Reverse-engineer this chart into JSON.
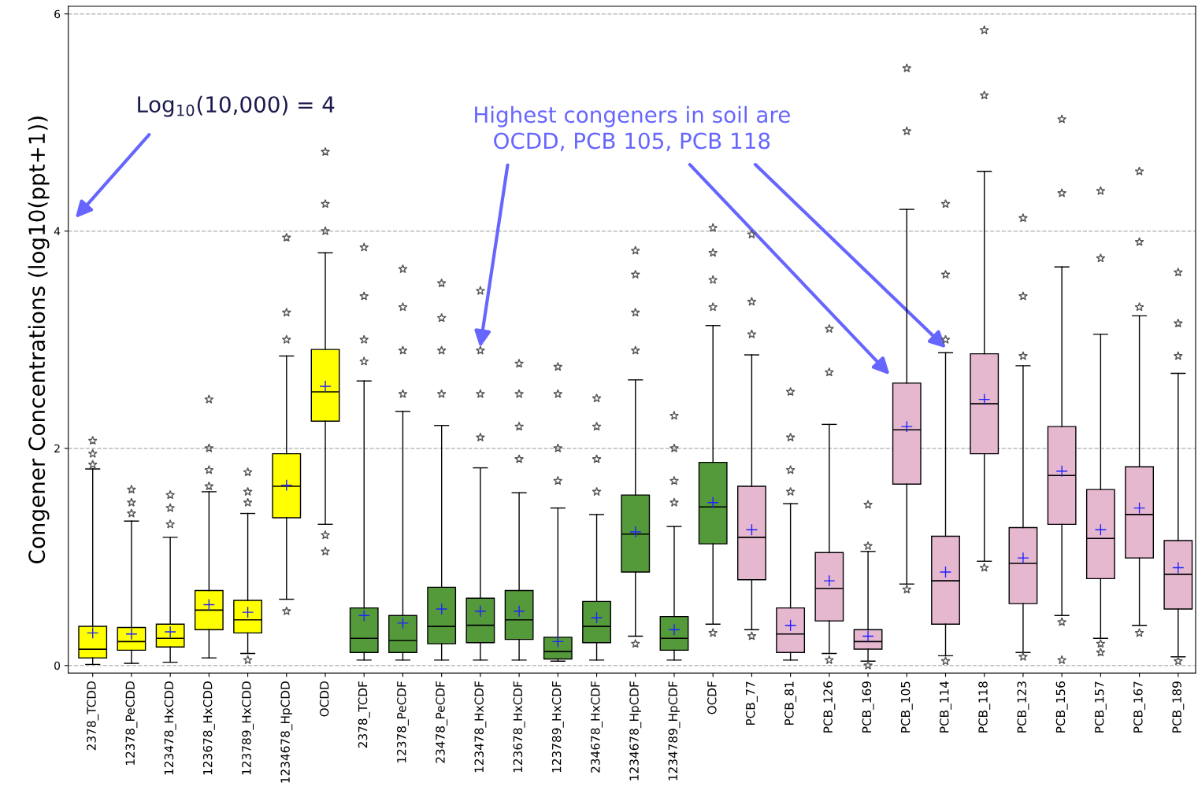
{
  "chart_data": {
    "type": "box",
    "ylabel": "Congener Concentrations (log10(ppt+1))",
    "categories": [
      "2378_TCDD",
      "12378_PeCDD",
      "123478_HxCDD",
      "123678_HxCDD",
      "123789_HxCDD",
      "1234678_HpCDD",
      "OCDD",
      "2378_TCDF",
      "12378_PeCDF",
      "23478_PeCDF",
      "123478_HxCDF",
      "123678_HxCDF",
      "123789_HxCDF",
      "234678_HxCDF",
      "1234678_HpCDF",
      "1234789_HpCDF",
      "OCDF",
      "PCB_77",
      "PCB_81",
      "PCB_126",
      "PCB_169",
      "PCB_105",
      "PCB_114",
      "PCB_118",
      "PCB_123",
      "PCB_156",
      "PCB_157",
      "PCB_167",
      "PCB_189"
    ],
    "colors": [
      "#ffff00",
      "#ffff00",
      "#ffff00",
      "#ffff00",
      "#ffff00",
      "#ffff00",
      "#ffff00",
      "#559a3a",
      "#559a3a",
      "#559a3a",
      "#559a3a",
      "#559a3a",
      "#559a3a",
      "#559a3a",
      "#559a3a",
      "#559a3a",
      "#559a3a",
      "#e6b8d0",
      "#e6b8d0",
      "#e6b8d0",
      "#e6b8d0",
      "#e6b8d0",
      "#e6b8d0",
      "#e6b8d0",
      "#e6b8d0",
      "#e6b8d0",
      "#e6b8d0",
      "#e6b8d0",
      "#e6b8d0"
    ],
    "boxes": [
      {
        "low": 0.01,
        "q1": 0.07,
        "median": 0.15,
        "q3": 0.36,
        "high": 1.81,
        "mean": 0.3,
        "outliers": [
          2.07,
          1.95,
          1.85
        ]
      },
      {
        "low": 0.02,
        "q1": 0.14,
        "median": 0.22,
        "q3": 0.35,
        "high": 1.33,
        "mean": 0.29,
        "outliers": [
          1.62,
          1.5,
          1.4
        ]
      },
      {
        "low": 0.03,
        "q1": 0.17,
        "median": 0.25,
        "q3": 0.38,
        "high": 1.18,
        "mean": 0.31,
        "outliers": [
          1.57,
          1.45,
          1.3
        ]
      },
      {
        "low": 0.07,
        "q1": 0.33,
        "median": 0.51,
        "q3": 0.69,
        "high": 1.6,
        "mean": 0.56,
        "outliers": [
          2.45,
          2.0,
          1.8,
          1.65
        ]
      },
      {
        "low": 0.11,
        "q1": 0.3,
        "median": 0.42,
        "q3": 0.6,
        "high": 1.4,
        "mean": 0.49,
        "outliers": [
          1.78,
          1.6,
          1.5,
          0.05
        ]
      },
      {
        "low": 0.61,
        "q1": 1.36,
        "median": 1.65,
        "q3": 1.95,
        "high": 2.85,
        "mean": 1.66,
        "outliers": [
          3.94,
          3.25,
          3.0,
          0.5
        ]
      },
      {
        "low": 1.3,
        "q1": 2.25,
        "median": 2.52,
        "q3": 2.91,
        "high": 3.8,
        "mean": 2.57,
        "outliers": [
          4.73,
          4.25,
          4.0,
          1.2,
          1.05
        ]
      },
      {
        "low": 0.05,
        "q1": 0.12,
        "median": 0.25,
        "q3": 0.53,
        "high": 2.62,
        "mean": 0.46,
        "outliers": [
          3.85,
          3.4,
          3.0,
          2.8
        ]
      },
      {
        "low": 0.05,
        "q1": 0.12,
        "median": 0.23,
        "q3": 0.46,
        "high": 2.34,
        "mean": 0.39,
        "outliers": [
          3.65,
          3.3,
          2.9,
          2.5
        ]
      },
      {
        "low": 0.05,
        "q1": 0.2,
        "median": 0.36,
        "q3": 0.72,
        "high": 2.21,
        "mean": 0.52,
        "outliers": [
          3.52,
          3.2,
          2.9,
          2.5
        ]
      },
      {
        "low": 0.05,
        "q1": 0.21,
        "median": 0.37,
        "q3": 0.62,
        "high": 1.82,
        "mean": 0.5,
        "outliers": [
          3.45,
          2.9,
          2.5,
          2.1
        ]
      },
      {
        "low": 0.05,
        "q1": 0.24,
        "median": 0.42,
        "q3": 0.69,
        "high": 1.59,
        "mean": 0.5,
        "outliers": [
          2.78,
          2.5,
          2.2,
          1.9
        ]
      },
      {
        "low": 0.04,
        "q1": 0.06,
        "median": 0.13,
        "q3": 0.26,
        "high": 1.45,
        "mean": 0.22,
        "outliers": [
          2.75,
          2.5,
          2.0,
          1.7
        ]
      },
      {
        "low": 0.05,
        "q1": 0.21,
        "median": 0.36,
        "q3": 0.59,
        "high": 1.39,
        "mean": 0.44,
        "outliers": [
          2.46,
          2.2,
          1.9,
          1.6
        ]
      },
      {
        "low": 0.27,
        "q1": 0.86,
        "median": 1.21,
        "q3": 1.57,
        "high": 2.63,
        "mean": 1.23,
        "outliers": [
          3.82,
          3.6,
          3.25,
          2.9,
          0.2
        ]
      },
      {
        "low": 0.05,
        "q1": 0.14,
        "median": 0.25,
        "q3": 0.45,
        "high": 1.28,
        "mean": 0.33,
        "outliers": [
          2.3,
          2.0,
          1.7,
          1.5
        ]
      },
      {
        "low": 0.38,
        "q1": 1.12,
        "median": 1.46,
        "q3": 1.87,
        "high": 3.13,
        "mean": 1.5,
        "outliers": [
          4.03,
          3.8,
          3.55,
          3.3,
          0.3
        ]
      },
      {
        "low": 0.33,
        "q1": 0.79,
        "median": 1.18,
        "q3": 1.65,
        "high": 2.86,
        "mean": 1.25,
        "outliers": [
          3.97,
          3.35,
          3.05,
          0.27
        ]
      },
      {
        "low": 0.05,
        "q1": 0.12,
        "median": 0.29,
        "q3": 0.53,
        "high": 1.49,
        "mean": 0.37,
        "outliers": [
          2.52,
          2.1,
          1.8,
          1.6
        ]
      },
      {
        "low": 0.11,
        "q1": 0.41,
        "median": 0.71,
        "q3": 1.04,
        "high": 2.22,
        "mean": 0.78,
        "outliers": [
          3.1,
          2.7,
          0.05
        ]
      },
      {
        "low": 0.04,
        "q1": 0.15,
        "median": 0.22,
        "q3": 0.33,
        "high": 1.05,
        "mean": 0.27,
        "outliers": [
          1.48,
          1.1,
          0.0
        ]
      },
      {
        "low": 0.75,
        "q1": 1.67,
        "median": 2.17,
        "q3": 2.6,
        "high": 4.2,
        "mean": 2.2,
        "outliers": [
          5.5,
          4.92,
          0.7
        ]
      },
      {
        "low": 0.09,
        "q1": 0.38,
        "median": 0.78,
        "q3": 1.19,
        "high": 2.88,
        "mean": 0.86,
        "outliers": [
          4.25,
          3.6,
          3.0,
          0.04
        ]
      },
      {
        "low": 0.96,
        "q1": 1.95,
        "median": 2.41,
        "q3": 2.87,
        "high": 4.55,
        "mean": 2.45,
        "outliers": [
          5.85,
          5.25,
          0.9
        ]
      },
      {
        "low": 0.12,
        "q1": 0.57,
        "median": 0.94,
        "q3": 1.27,
        "high": 2.76,
        "mean": 0.99,
        "outliers": [
          4.12,
          3.4,
          2.85,
          0.08
        ]
      },
      {
        "low": 0.46,
        "q1": 1.3,
        "median": 1.75,
        "q3": 2.2,
        "high": 3.67,
        "mean": 1.79,
        "outliers": [
          5.03,
          4.35,
          0.4,
          0.05
        ]
      },
      {
        "low": 0.25,
        "q1": 0.8,
        "median": 1.17,
        "q3": 1.62,
        "high": 3.05,
        "mean": 1.25,
        "outliers": [
          4.37,
          3.75,
          0.2,
          0.12
        ]
      },
      {
        "low": 0.37,
        "q1": 0.99,
        "median": 1.39,
        "q3": 1.83,
        "high": 3.22,
        "mean": 1.45,
        "outliers": [
          4.55,
          3.9,
          3.3,
          0.3
        ]
      },
      {
        "low": 0.08,
        "q1": 0.52,
        "median": 0.84,
        "q3": 1.15,
        "high": 2.69,
        "mean": 0.9,
        "outliers": [
          3.62,
          3.15,
          2.85,
          0.04
        ]
      }
    ],
    "ylim": [
      -0.07,
      6.07
    ],
    "yticks": [
      0,
      2,
      4,
      6
    ],
    "grid": "y",
    "annotations": [
      "Log$_{10}$(10,000) = 4",
      "Highest congeners in soil are\nOCDD, PCB 105, PCB 118"
    ]
  }
}
